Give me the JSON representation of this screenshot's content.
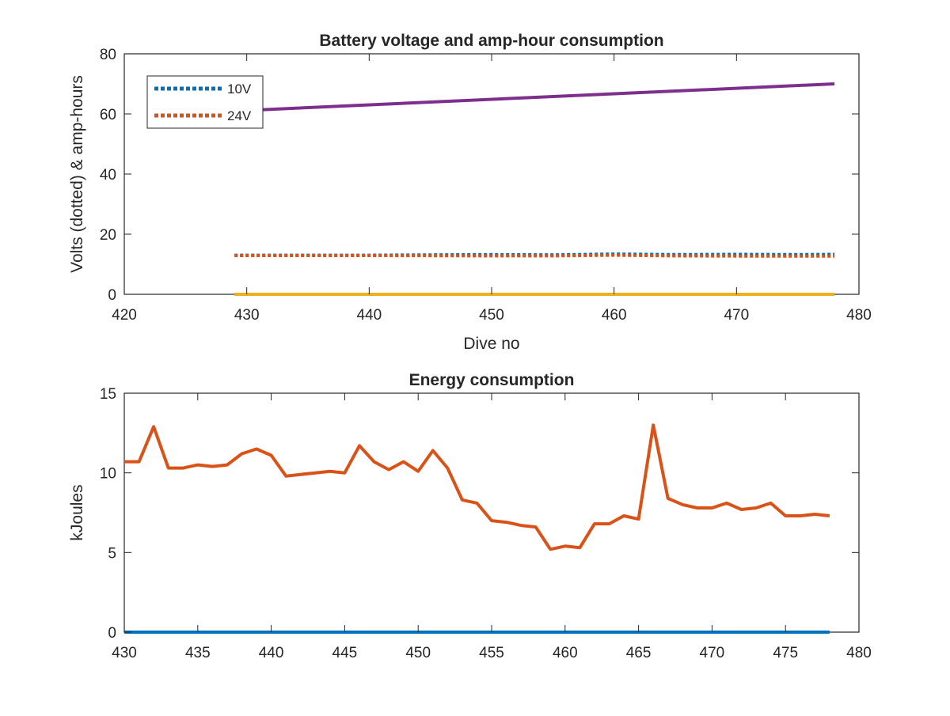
{
  "chart_data": [
    {
      "type": "line",
      "title": "Battery voltage and amp-hour consumption",
      "xlabel": "Dive no",
      "ylabel": "Volts (dotted) & amp-hours",
      "xlim": [
        420,
        480
      ],
      "ylim": [
        0,
        80
      ],
      "xticks": [
        420,
        430,
        440,
        450,
        460,
        470,
        480
      ],
      "yticks": [
        0,
        20,
        40,
        60,
        80
      ],
      "legend": {
        "location": "top-left",
        "entries": [
          "10V",
          "24V"
        ]
      },
      "grid": false,
      "series": [
        {
          "name": "10V",
          "style": "dotted",
          "color": "#0072BD",
          "x": [
            429,
            440,
            450,
            455,
            460,
            465,
            470,
            475,
            478
          ],
          "y": [
            13,
            13,
            13.2,
            13.1,
            13.4,
            13.2,
            13.3,
            13.2,
            13.3
          ]
        },
        {
          "name": "24V",
          "style": "dotted",
          "color": "#D95319",
          "x": [
            429,
            440,
            450,
            455,
            460,
            465,
            470,
            475,
            478
          ],
          "y": [
            12.9,
            12.9,
            12.8,
            12.8,
            13.0,
            12.8,
            12.7,
            12.7,
            12.7
          ]
        },
        {
          "style": "solid",
          "color": "#7E2F8E",
          "x": [
            429,
            478
          ],
          "y": [
            61,
            70
          ]
        },
        {
          "style": "solid",
          "color": "#EDB120",
          "x": [
            429,
            478
          ],
          "y": [
            0,
            0
          ]
        }
      ]
    },
    {
      "type": "line",
      "title": "Energy consumption",
      "xlabel": "",
      "ylabel": "kJoules",
      "xlim": [
        430,
        480
      ],
      "ylim": [
        0,
        15
      ],
      "xticks": [
        430,
        435,
        440,
        445,
        450,
        455,
        460,
        465,
        470,
        475,
        480
      ],
      "yticks": [
        0,
        5,
        10,
        15
      ],
      "grid": false,
      "series": [
        {
          "style": "solid",
          "color": "#D95319",
          "x": [
            430,
            431,
            432,
            433,
            434,
            435,
            436,
            437,
            438,
            439,
            440,
            441,
            442,
            443,
            444,
            445,
            446,
            447,
            448,
            449,
            450,
            451,
            452,
            453,
            454,
            455,
            456,
            457,
            458,
            459,
            460,
            461,
            462,
            463,
            464,
            465,
            466,
            467,
            468,
            469,
            470,
            471,
            472,
            473,
            474,
            475,
            476,
            477,
            478
          ],
          "y": [
            10.7,
            10.7,
            12.9,
            10.3,
            10.3,
            10.5,
            10.4,
            10.5,
            11.2,
            11.5,
            11.1,
            9.8,
            9.9,
            10.0,
            10.1,
            10.0,
            11.7,
            10.7,
            10.2,
            10.7,
            10.1,
            11.4,
            10.3,
            8.3,
            8.1,
            7.0,
            6.9,
            6.7,
            6.6,
            5.2,
            5.4,
            5.3,
            6.8,
            6.8,
            7.3,
            7.1,
            13.0,
            8.4,
            8.0,
            7.8,
            7.8,
            8.1,
            7.7,
            7.8,
            8.1,
            7.3,
            7.3,
            7.4,
            7.3
          ]
        },
        {
          "style": "solid",
          "color": "#0072BD",
          "x": [
            430,
            478
          ],
          "y": [
            0,
            0
          ]
        }
      ]
    }
  ]
}
